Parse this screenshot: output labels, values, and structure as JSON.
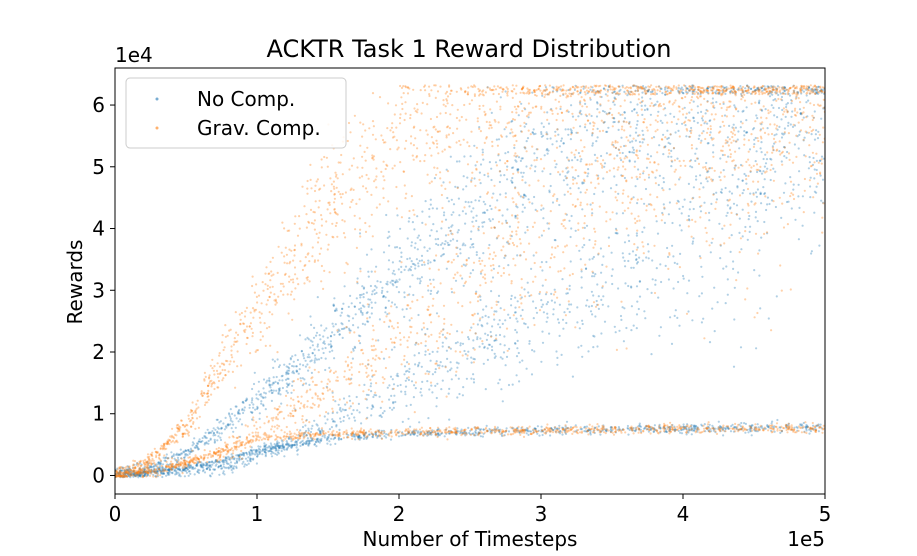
{
  "chart_data": {
    "type": "scatter",
    "title": "ACKTR Task 1 Reward Distribution",
    "xlabel": "Number of Timesteps",
    "ylabel": "Rewards",
    "x_multiplier": "1e5",
    "y_multiplier": "1e4",
    "xlim": [
      0,
      500000
    ],
    "ylim": [
      -3000,
      66000
    ],
    "x_ticks": [
      0,
      100000,
      200000,
      300000,
      400000,
      500000
    ],
    "x_tick_labels": [
      "0",
      "1",
      "2",
      "3",
      "4",
      "5"
    ],
    "y_ticks": [
      0,
      10000,
      20000,
      30000,
      40000,
      50000,
      60000
    ],
    "y_tick_labels": [
      "0",
      "1",
      "2",
      "3",
      "4",
      "5",
      "6"
    ],
    "legend_position": "top-left",
    "grid": false,
    "series": [
      {
        "name": "No Comp.",
        "color": "#1f77b4",
        "trends": [
          {
            "x": [
              0,
              20000,
              50000,
              100000,
              150000,
              200000,
              250000,
              300000,
              350000,
              400000,
              450000,
              500000
            ],
            "y": [
              200,
              700,
              3500,
              12000,
              22000,
              33000,
              43000,
              52000,
              57000,
              59500,
              60500,
              61000
            ]
          },
          {
            "x": [
              0,
              30000,
              80000,
              130000,
              180000,
              230000,
              280000,
              330000,
              380000,
              430000,
              480000,
              500000
            ],
            "y": [
              200,
              500,
              1500,
              6000,
              12000,
              18000,
              23000,
              28000,
              34000,
              41000,
              49000,
              55000
            ]
          },
          {
            "x": [
              0,
              30000,
              70000,
              100000,
              150000,
              200000,
              300000,
              400000,
              500000
            ],
            "y": [
              100,
              500,
              2000,
              4000,
              6000,
              6800,
              7300,
              7600,
              7800
            ]
          }
        ]
      },
      {
        "name": "Grav. Comp.",
        "color": "#ff7f0e",
        "trends": [
          {
            "x": [
              0,
              20000,
              50000,
              100000,
              150000,
              200000,
              250000,
              300000,
              350000,
              400000,
              450000,
              500000
            ],
            "y": [
              200,
              1500,
              8000,
              27000,
              42000,
              53000,
              59000,
              61000,
              61500,
              61800,
              62000,
              62000
            ]
          },
          {
            "x": [
              0,
              30000,
              80000,
              150000,
              200000,
              250000,
              300000,
              350000,
              400000,
              450000,
              500000
            ],
            "y": [
              200,
              800,
              4000,
              14000,
              22000,
              30000,
              38000,
              46000,
              52000,
              56000,
              58000
            ]
          },
          {
            "x": [
              0,
              30000,
              70000,
              100000,
              150000,
              200000,
              300000,
              400000,
              500000
            ],
            "y": [
              100,
              700,
              3500,
              6000,
              6700,
              7000,
              7300,
              7500,
              7600
            ]
          }
        ]
      }
    ]
  }
}
